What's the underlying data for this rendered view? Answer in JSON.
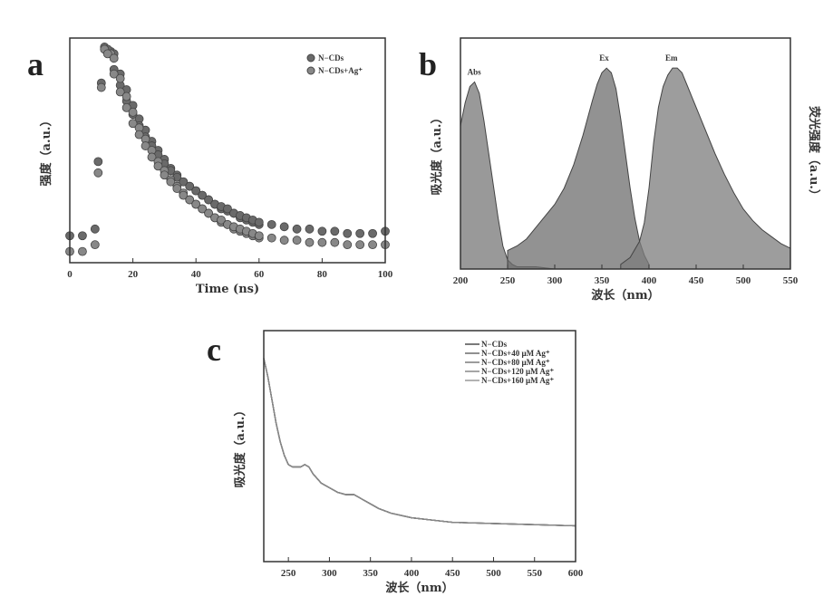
{
  "panels": {
    "a": "a",
    "b": "b",
    "c": "c"
  },
  "chart_data": [
    {
      "id": "a",
      "type": "scatter",
      "xlabel": "Time (ns)",
      "ylabel": "强度（a.u.）",
      "xlim": [
        0,
        100
      ],
      "ylim": [
        0,
        1
      ],
      "xticks": [
        0,
        20,
        40,
        60,
        80,
        100
      ],
      "legend_position": "top-right",
      "series": [
        {
          "name": "N−CDs",
          "color": "#6a6a6a",
          "x": [
            0,
            4,
            8,
            9,
            10,
            11,
            12,
            14,
            16,
            18,
            20,
            22,
            24,
            26,
            28,
            30,
            32,
            34,
            36,
            38,
            40,
            42,
            44,
            46,
            48,
            50,
            52,
            54,
            56,
            58,
            60,
            64,
            68,
            72,
            76,
            80,
            84,
            88,
            92,
            96,
            100
          ],
          "y": [
            0.12,
            0.12,
            0.15,
            0.45,
            0.8,
            0.96,
            0.95,
            0.86,
            0.79,
            0.72,
            0.66,
            0.61,
            0.56,
            0.52,
            0.48,
            0.44,
            0.41,
            0.38,
            0.36,
            0.34,
            0.32,
            0.3,
            0.28,
            0.26,
            0.25,
            0.24,
            0.22,
            0.21,
            0.2,
            0.19,
            0.18,
            0.17,
            0.16,
            0.15,
            0.15,
            0.14,
            0.14,
            0.13,
            0.13,
            0.13,
            0.14
          ]
        },
        {
          "name": "N−CDs+Ag⁺",
          "color": "#888888",
          "x": [
            0,
            4,
            8,
            9,
            10,
            11,
            12,
            14,
            16,
            18,
            20,
            22,
            24,
            26,
            28,
            30,
            32,
            34,
            36,
            38,
            40,
            42,
            44,
            46,
            48,
            50,
            52,
            54,
            56,
            58,
            60,
            64,
            68,
            72,
            76,
            80,
            84,
            88,
            92,
            96,
            100
          ],
          "y": [
            0.05,
            0.05,
            0.08,
            0.4,
            0.78,
            0.95,
            0.93,
            0.84,
            0.76,
            0.69,
            0.62,
            0.57,
            0.52,
            0.47,
            0.43,
            0.39,
            0.36,
            0.33,
            0.3,
            0.28,
            0.26,
            0.24,
            0.22,
            0.2,
            0.19,
            0.17,
            0.16,
            0.15,
            0.14,
            0.13,
            0.12,
            0.11,
            0.1,
            0.1,
            0.09,
            0.09,
            0.09,
            0.08,
            0.08,
            0.08,
            0.08
          ]
        }
      ]
    },
    {
      "id": "b",
      "type": "area",
      "xlabel": "波长（nm）",
      "ylabel": "吸光度（a.u.）",
      "ylabel_right": "荧光强度（a.u.）",
      "xlim": [
        200,
        550
      ],
      "ylim": [
        0,
        1
      ],
      "xticks": [
        200,
        250,
        300,
        350,
        400,
        450,
        500,
        550
      ],
      "series": [
        {
          "name": "Abs",
          "color": "#777777",
          "x": [
            200,
            205,
            210,
            215,
            220,
            225,
            230,
            235,
            240,
            245,
            250,
            255,
            260,
            270,
            280,
            300,
            350,
            400
          ],
          "y": [
            0.62,
            0.72,
            0.79,
            0.81,
            0.76,
            0.64,
            0.5,
            0.36,
            0.22,
            0.1,
            0.04,
            0.02,
            0.01,
            0.01,
            0.01,
            0.0,
            0.0,
            0.0
          ]
        },
        {
          "name": "Ex",
          "color": "#6e6e6e",
          "x": [
            250,
            260,
            270,
            280,
            290,
            300,
            310,
            320,
            330,
            340,
            345,
            350,
            355,
            360,
            365,
            370,
            375,
            380,
            385,
            390,
            395,
            400
          ],
          "y": [
            0.08,
            0.1,
            0.13,
            0.18,
            0.23,
            0.28,
            0.35,
            0.45,
            0.58,
            0.73,
            0.8,
            0.85,
            0.87,
            0.85,
            0.78,
            0.65,
            0.5,
            0.35,
            0.22,
            0.12,
            0.06,
            0.02
          ]
        },
        {
          "name": "Em",
          "color": "#7c7c7c",
          "x": [
            370,
            380,
            390,
            395,
            400,
            405,
            410,
            415,
            420,
            425,
            430,
            435,
            440,
            450,
            460,
            470,
            480,
            490,
            500,
            510,
            520,
            530,
            540,
            550
          ],
          "y": [
            0.02,
            0.05,
            0.12,
            0.2,
            0.35,
            0.55,
            0.7,
            0.79,
            0.84,
            0.87,
            0.87,
            0.85,
            0.8,
            0.7,
            0.6,
            0.5,
            0.41,
            0.33,
            0.26,
            0.21,
            0.17,
            0.14,
            0.11,
            0.09
          ]
        }
      ]
    },
    {
      "id": "c",
      "type": "line",
      "xlabel": "波长（nm）",
      "ylabel": "吸光度（a.u.）",
      "xlim": [
        220,
        600
      ],
      "ylim": [
        0,
        1
      ],
      "xticks": [
        250,
        300,
        350,
        400,
        450,
        500,
        550,
        600
      ],
      "legend_position": "top-right",
      "x": [
        220,
        225,
        230,
        235,
        240,
        245,
        250,
        255,
        260,
        265,
        270,
        275,
        280,
        290,
        300,
        310,
        320,
        330,
        335,
        340,
        350,
        360,
        375,
        400,
        425,
        450,
        500,
        550,
        600
      ],
      "series": [
        {
          "name": "N−CDs",
          "color": "#333333",
          "y": [
            0.88,
            0.8,
            0.7,
            0.6,
            0.52,
            0.46,
            0.42,
            0.41,
            0.41,
            0.41,
            0.42,
            0.41,
            0.38,
            0.34,
            0.32,
            0.3,
            0.29,
            0.29,
            0.28,
            0.27,
            0.25,
            0.23,
            0.21,
            0.19,
            0.18,
            0.17,
            0.165,
            0.16,
            0.155
          ]
        },
        {
          "name": "N−CDs+40 μM Ag⁺",
          "color": "#555555",
          "y": [
            0.88,
            0.8,
            0.7,
            0.6,
            0.52,
            0.46,
            0.42,
            0.41,
            0.41,
            0.41,
            0.42,
            0.41,
            0.38,
            0.34,
            0.32,
            0.3,
            0.29,
            0.29,
            0.28,
            0.27,
            0.25,
            0.23,
            0.21,
            0.19,
            0.18,
            0.17,
            0.165,
            0.16,
            0.155
          ]
        },
        {
          "name": "N−CDs+80 μM Ag⁺",
          "color": "#666666",
          "y": [
            0.88,
            0.8,
            0.7,
            0.6,
            0.52,
            0.46,
            0.42,
            0.41,
            0.41,
            0.41,
            0.42,
            0.41,
            0.38,
            0.34,
            0.32,
            0.3,
            0.29,
            0.29,
            0.28,
            0.27,
            0.25,
            0.23,
            0.21,
            0.19,
            0.18,
            0.17,
            0.165,
            0.16,
            0.155
          ]
        },
        {
          "name": "N−CDs+120 μM Ag⁺",
          "color": "#777777",
          "y": [
            0.88,
            0.8,
            0.7,
            0.6,
            0.52,
            0.46,
            0.42,
            0.41,
            0.41,
            0.41,
            0.42,
            0.41,
            0.38,
            0.34,
            0.32,
            0.3,
            0.29,
            0.29,
            0.28,
            0.27,
            0.25,
            0.23,
            0.21,
            0.19,
            0.18,
            0.17,
            0.165,
            0.16,
            0.155
          ]
        },
        {
          "name": "N−CDs+160 μM Ag⁺",
          "color": "#888888",
          "y": [
            0.88,
            0.8,
            0.7,
            0.6,
            0.52,
            0.46,
            0.42,
            0.41,
            0.41,
            0.41,
            0.42,
            0.41,
            0.38,
            0.34,
            0.32,
            0.3,
            0.29,
            0.29,
            0.28,
            0.27,
            0.25,
            0.23,
            0.21,
            0.19,
            0.18,
            0.17,
            0.165,
            0.16,
            0.155
          ]
        }
      ]
    }
  ]
}
